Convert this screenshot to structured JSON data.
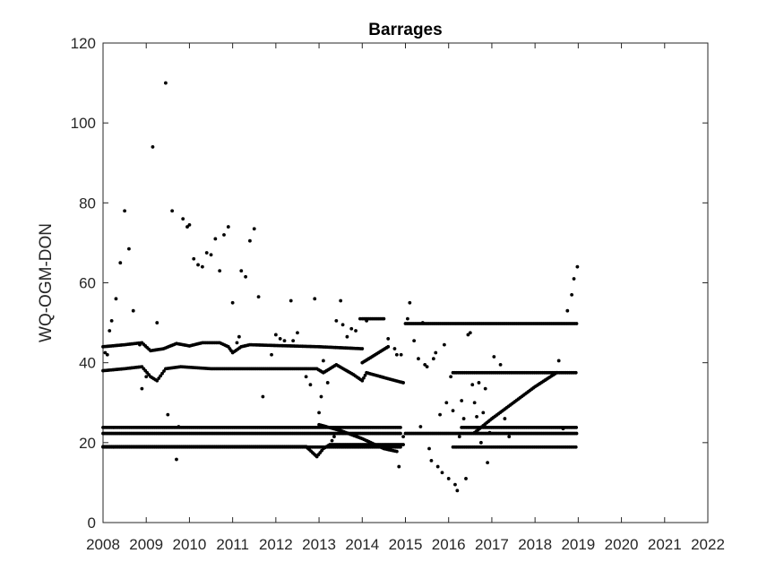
{
  "chart_data": {
    "type": "scatter",
    "title": "Barrages",
    "xlabel": "",
    "ylabel": "WQ-OGM-DON",
    "xlim": [
      2008,
      2022
    ],
    "ylim": [
      0,
      120
    ],
    "xticks": [
      "2008",
      "2009",
      "2010",
      "2011",
      "2012",
      "2013",
      "2014",
      "2015",
      "2016",
      "2017",
      "2018",
      "2019",
      "2020",
      "2021",
      "2022"
    ],
    "yticks": [
      "0",
      "20",
      "40",
      "60",
      "80",
      "100",
      "120"
    ],
    "grid": false,
    "legend": "none",
    "marker_color": "#000000",
    "series": [
      {
        "horizontal_bands": [
          {
            "y": 18.9,
            "segments": [
              [
                2008.0,
                2014.9
              ],
              [
                2016.1,
                2018.98
              ]
            ]
          },
          {
            "y": 22.3,
            "segments": [
              [
                2008.0,
                2014.9
              ],
              [
                2015.0,
                2018.98
              ]
            ]
          },
          {
            "y": 23.8,
            "segments": [
              [
                2008.0,
                2014.9
              ],
              [
                2016.3,
                2018.98
              ]
            ]
          },
          {
            "y": 49.8,
            "segments": [
              [
                2015.0,
                2018.98
              ]
            ]
          },
          {
            "y": 37.5,
            "segments": [
              [
                2016.1,
                2018.98
              ]
            ]
          }
        ],
        "curves": [
          [
            [
              2008.0,
              44.0
            ],
            [
              2008.5,
              44.5
            ],
            [
              2008.9,
              45.0
            ],
            [
              2009.1,
              43.0
            ],
            [
              2009.4,
              43.5
            ],
            [
              2009.7,
              44.8
            ],
            [
              2010.0,
              44.2
            ],
            [
              2010.3,
              45.0
            ],
            [
              2010.7,
              45.0
            ],
            [
              2010.9,
              44.0
            ],
            [
              2011.0,
              42.5
            ],
            [
              2011.2,
              44.0
            ],
            [
              2011.4,
              44.5
            ],
            [
              2012.0,
              44.3
            ],
            [
              2013.0,
              44.0
            ],
            [
              2014.0,
              43.5
            ]
          ],
          [
            [
              2008.0,
              38.0
            ],
            [
              2008.5,
              38.5
            ],
            [
              2008.9,
              39.0
            ],
            [
              2009.1,
              36.5
            ],
            [
              2009.25,
              35.5
            ],
            [
              2009.45,
              38.5
            ],
            [
              2009.8,
              39.0
            ],
            [
              2010.5,
              38.5
            ],
            [
              2012.5,
              38.5
            ],
            [
              2012.95,
              38.5
            ],
            [
              2013.1,
              37.5
            ],
            [
              2013.4,
              39.5
            ],
            [
              2013.8,
              37.0
            ],
            [
              2014.0,
              35.5
            ],
            [
              2014.1,
              37.5
            ],
            [
              2014.6,
              36.0
            ],
            [
              2014.95,
              35.0
            ]
          ],
          [
            [
              2008.0,
              19.0
            ],
            [
              2012.7,
              19.0
            ],
            [
              2012.85,
              17.5
            ],
            [
              2012.95,
              16.5
            ],
            [
              2013.1,
              18.5
            ],
            [
              2013.25,
              19.5
            ],
            [
              2013.5,
              19.5
            ],
            [
              2014.5,
              19.5
            ],
            [
              2014.95,
              19.5
            ]
          ],
          [
            [
              2013.0,
              24.5
            ],
            [
              2013.5,
              23.0
            ],
            [
              2014.0,
              21.0
            ],
            [
              2014.5,
              18.5
            ],
            [
              2014.8,
              17.8
            ]
          ],
          [
            [
              2014.0,
              40.0
            ],
            [
              2014.3,
              42.0
            ],
            [
              2014.6,
              44.0
            ]
          ],
          [
            [
              2014.0,
              51.0
            ],
            [
              2014.5,
              51.0
            ]
          ],
          [
            [
              2016.6,
              22.5
            ],
            [
              2017.0,
              26.0
            ],
            [
              2017.5,
              30.0
            ],
            [
              2018.0,
              34.0
            ],
            [
              2018.5,
              37.5
            ]
          ]
        ],
        "points": [
          [
            2008.05,
            42.5
          ],
          [
            2008.1,
            42.0
          ],
          [
            2008.15,
            48.0
          ],
          [
            2008.2,
            50.5
          ],
          [
            2008.3,
            56.0
          ],
          [
            2008.4,
            65.0
          ],
          [
            2008.5,
            78.0
          ],
          [
            2008.6,
            68.5
          ],
          [
            2008.7,
            53.0
          ],
          [
            2008.85,
            44.5
          ],
          [
            2008.9,
            33.5
          ],
          [
            2009.0,
            36.5
          ],
          [
            2009.15,
            94.0
          ],
          [
            2009.25,
            50.0
          ],
          [
            2009.45,
            110.0
          ],
          [
            2009.5,
            27.0
          ],
          [
            2009.6,
            78.0
          ],
          [
            2009.7,
            15.8
          ],
          [
            2009.75,
            24.0
          ],
          [
            2009.85,
            76.0
          ],
          [
            2009.95,
            74.0
          ],
          [
            2010.0,
            74.5
          ],
          [
            2010.1,
            66.0
          ],
          [
            2010.2,
            64.5
          ],
          [
            2010.3,
            64.0
          ],
          [
            2010.4,
            67.5
          ],
          [
            2010.5,
            67.0
          ],
          [
            2010.6,
            71.0
          ],
          [
            2010.7,
            63.0
          ],
          [
            2010.8,
            72.0
          ],
          [
            2010.9,
            74.0
          ],
          [
            2011.0,
            55.0
          ],
          [
            2011.1,
            45.0
          ],
          [
            2011.15,
            46.5
          ],
          [
            2011.2,
            63.0
          ],
          [
            2011.3,
            61.5
          ],
          [
            2011.4,
            70.5
          ],
          [
            2011.5,
            73.5
          ],
          [
            2011.6,
            56.5
          ],
          [
            2011.7,
            31.5
          ],
          [
            2011.9,
            42.0
          ],
          [
            2012.0,
            47.0
          ],
          [
            2012.1,
            46.0
          ],
          [
            2012.2,
            45.5
          ],
          [
            2012.35,
            55.5
          ],
          [
            2012.4,
            45.5
          ],
          [
            2012.5,
            47.5
          ],
          [
            2012.7,
            36.5
          ],
          [
            2012.8,
            34.5
          ],
          [
            2012.9,
            56.0
          ],
          [
            2013.0,
            27.5
          ],
          [
            2013.05,
            31.5
          ],
          [
            2013.1,
            40.5
          ],
          [
            2013.2,
            35.0
          ],
          [
            2013.3,
            20.5
          ],
          [
            2013.35,
            21.5
          ],
          [
            2013.4,
            50.5
          ],
          [
            2013.5,
            55.5
          ],
          [
            2013.55,
            49.5
          ],
          [
            2013.65,
            46.5
          ],
          [
            2013.75,
            48.5
          ],
          [
            2013.85,
            48.0
          ],
          [
            2013.95,
            51.0
          ],
          [
            2014.1,
            50.5
          ],
          [
            2014.6,
            46.0
          ],
          [
            2014.75,
            43.5
          ],
          [
            2014.8,
            42.0
          ],
          [
            2014.85,
            14.0
          ],
          [
            2014.9,
            42.0
          ],
          [
            2014.95,
            21.5
          ],
          [
            2015.05,
            51.0
          ],
          [
            2015.1,
            55.0
          ],
          [
            2015.2,
            45.5
          ],
          [
            2015.3,
            41.0
          ],
          [
            2015.35,
            24.0
          ],
          [
            2015.4,
            50.0
          ],
          [
            2015.45,
            39.5
          ],
          [
            2015.5,
            39.0
          ],
          [
            2015.55,
            18.5
          ],
          [
            2015.6,
            15.5
          ],
          [
            2015.65,
            41.0
          ],
          [
            2015.7,
            42.5
          ],
          [
            2015.75,
            14.0
          ],
          [
            2015.8,
            27.0
          ],
          [
            2015.85,
            12.5
          ],
          [
            2015.9,
            44.5
          ],
          [
            2015.95,
            30.0
          ],
          [
            2016.0,
            11.0
          ],
          [
            2016.05,
            36.5
          ],
          [
            2016.1,
            28.0
          ],
          [
            2016.15,
            9.5
          ],
          [
            2016.2,
            8.0
          ],
          [
            2016.25,
            21.5
          ],
          [
            2016.3,
            30.5
          ],
          [
            2016.35,
            26.0
          ],
          [
            2016.4,
            11.0
          ],
          [
            2016.45,
            47.0
          ],
          [
            2016.5,
            47.5
          ],
          [
            2016.55,
            34.5
          ],
          [
            2016.6,
            30.0
          ],
          [
            2016.65,
            26.5
          ],
          [
            2016.7,
            35.0
          ],
          [
            2016.75,
            20.0
          ],
          [
            2016.8,
            27.5
          ],
          [
            2016.85,
            33.5
          ],
          [
            2016.9,
            15.0
          ],
          [
            2016.95,
            22.5
          ],
          [
            2017.05,
            41.5
          ],
          [
            2017.2,
            39.5
          ],
          [
            2017.3,
            26.0
          ],
          [
            2017.4,
            21.5
          ],
          [
            2018.55,
            40.5
          ],
          [
            2018.65,
            23.5
          ],
          [
            2018.75,
            53.0
          ],
          [
            2018.85,
            57.0
          ],
          [
            2018.9,
            61.0
          ],
          [
            2018.98,
            64.0
          ]
        ]
      }
    ]
  }
}
